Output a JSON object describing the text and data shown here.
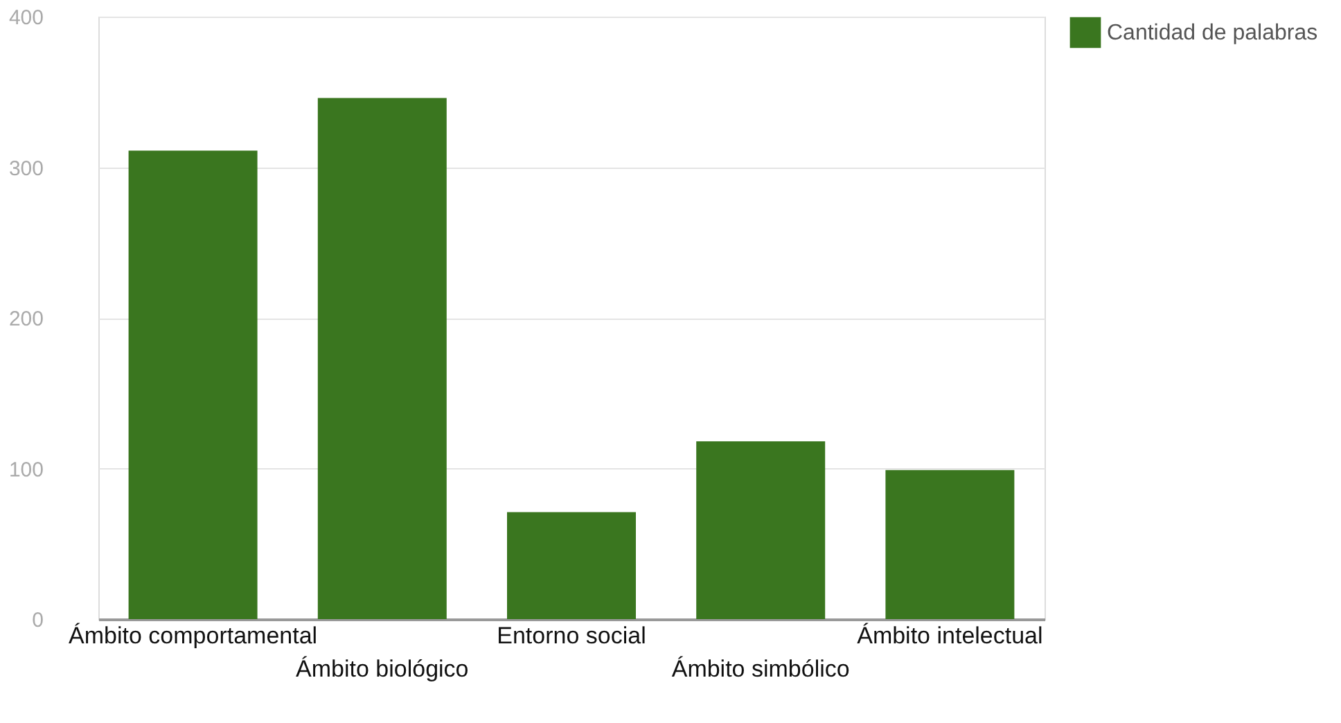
{
  "chart_data": {
    "type": "bar",
    "categories": [
      "Ámbito comportamental",
      "Ámbito biológico",
      "Entorno social",
      "Ámbito simbólico",
      "Ámbito intelectual"
    ],
    "series": [
      {
        "name": "Cantidad de palabras",
        "color": "#3a761f",
        "values": [
          311,
          346,
          71,
          118,
          99
        ]
      }
    ],
    "ylim": [
      0,
      400
    ],
    "yticks": [
      0,
      100,
      200,
      300,
      400
    ],
    "grid": "y",
    "legend": "top right"
  }
}
